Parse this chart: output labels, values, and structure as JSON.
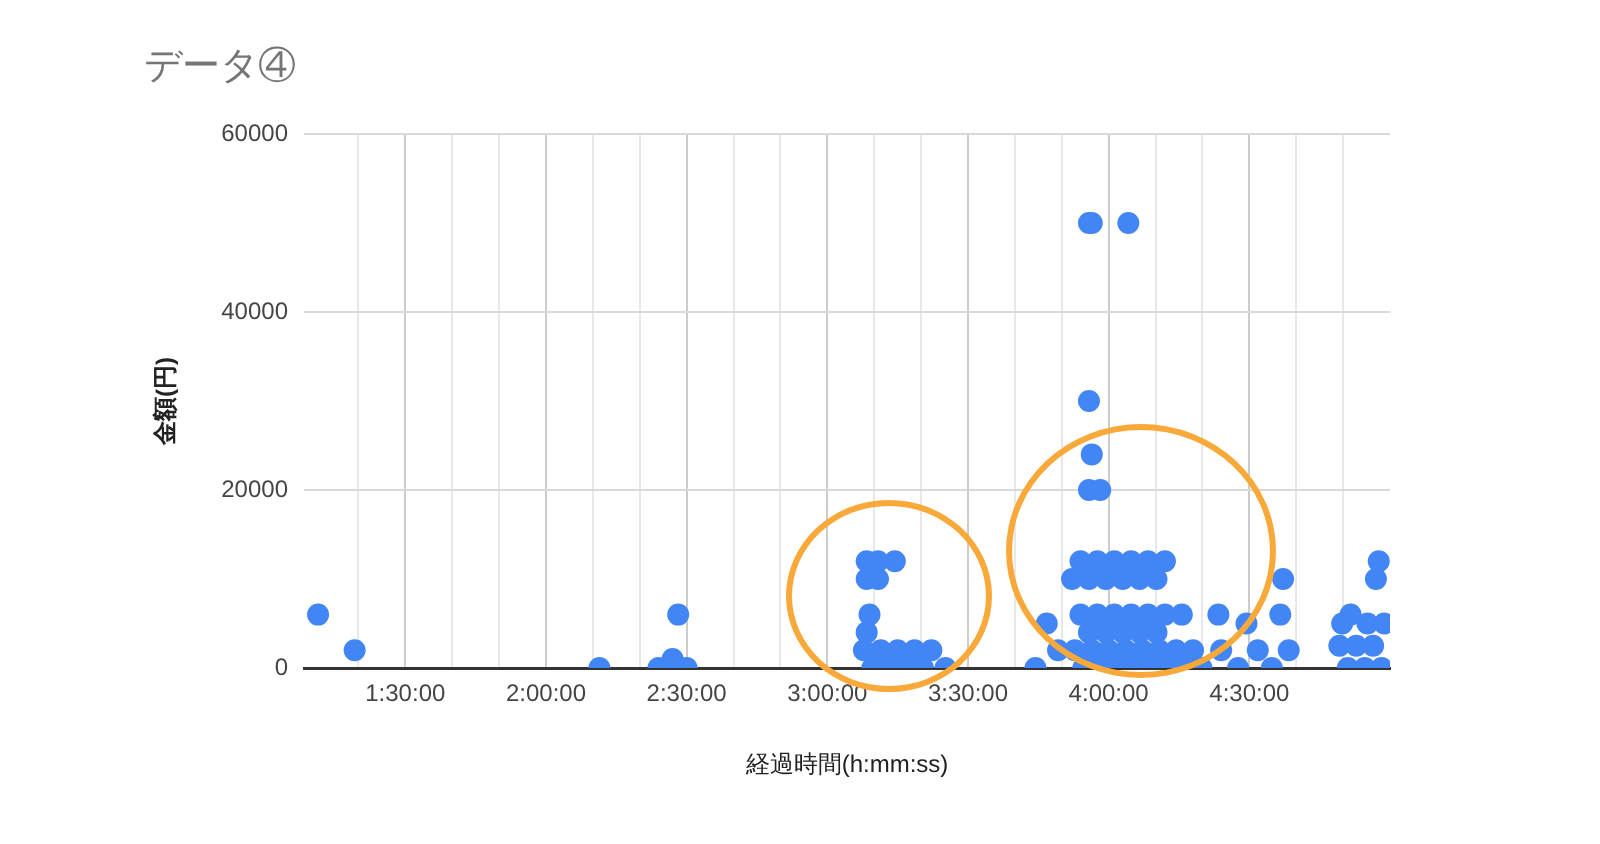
{
  "chart_data": {
    "type": "scatter",
    "title": "データ④",
    "xlabel": "経過時間(h:mm:ss)",
    "ylabel": "金額(円)",
    "xlim": [
      1.14,
      5.0
    ],
    "xticks": [
      {
        "value": 1.3333,
        "label": null
      },
      {
        "value": 1.5,
        "label": "1:30:00"
      },
      {
        "value": 1.6667,
        "label": null
      },
      {
        "value": 1.8333,
        "label": null
      },
      {
        "value": 2,
        "label": "2:00:00"
      },
      {
        "value": 2.1667,
        "label": null
      },
      {
        "value": 2.3333,
        "label": null
      },
      {
        "value": 2.5,
        "label": "2:30:00"
      },
      {
        "value": 2.6667,
        "label": null
      },
      {
        "value": 2.8333,
        "label": null
      },
      {
        "value": 3,
        "label": "3:00:00"
      },
      {
        "value": 3.1667,
        "label": null
      },
      {
        "value": 3.3333,
        "label": null
      },
      {
        "value": 3.5,
        "label": "3:30:00"
      },
      {
        "value": 3.6667,
        "label": null
      },
      {
        "value": 3.8333,
        "label": null
      },
      {
        "value": 4,
        "label": "4:00:00"
      },
      {
        "value": 4.1667,
        "label": null
      },
      {
        "value": 4.3333,
        "label": null
      },
      {
        "value": 4.5,
        "label": "4:30:00"
      },
      {
        "value": 4.6667,
        "label": null
      },
      {
        "value": 4.8333,
        "label": null
      }
    ],
    "ylim": [
      0,
      60000
    ],
    "yticks": [
      0,
      20000,
      40000,
      60000
    ],
    "grid": true,
    "legend": false,
    "marker": "circle",
    "series": [
      {
        "color": "#4285f4",
        "x": [
          1.19,
          1.32,
          2.19,
          2.4,
          2.45,
          2.5,
          2.47,
          3.14,
          3.18,
          3.24,
          3.14,
          3.18,
          3.15,
          3.14,
          3.13,
          3.19,
          3.25,
          3.31,
          3.37,
          3.16,
          3.22,
          3.28,
          3.34,
          3.42,
          3.74,
          3.78,
          3.82,
          3.93,
          3.94,
          4.07,
          3.93,
          3.94,
          3.93,
          3.97,
          3.9,
          3.96,
          4.02,
          4.08,
          4.14,
          4.2,
          3.87,
          3.93,
          3.99,
          4.05,
          4.11,
          4.17,
          3.9,
          3.96,
          4.02,
          4.08,
          4.14,
          4.2,
          4.26,
          4.39,
          3.93,
          3.99,
          4.05,
          4.11,
          4.17,
          3.88,
          3.94,
          4.0,
          4.06,
          4.12,
          4.18,
          4.24,
          4.3,
          3.91,
          3.97,
          4.03,
          4.09,
          4.15,
          4.21,
          4.27,
          4.33,
          4.4,
          4.46,
          4.49,
          4.53,
          4.58,
          4.62,
          4.61,
          4.64,
          4.96,
          4.95,
          4.86,
          4.83,
          4.92,
          4.98,
          4.82,
          4.88,
          4.94,
          4.85,
          4.91,
          4.97
        ],
        "values": [
          6000,
          2000,
          0,
          0,
          1000,
          0,
          6000,
          12000,
          12000,
          12000,
          10000,
          10000,
          6000,
          4000,
          2000,
          2000,
          2000,
          2000,
          2000,
          0,
          0,
          0,
          0,
          0,
          0,
          5000,
          2000,
          50000,
          50000,
          50000,
          30000,
          24000,
          20000,
          20000,
          12000,
          12000,
          12000,
          12000,
          12000,
          12000,
          10000,
          10000,
          10000,
          10000,
          10000,
          10000,
          6000,
          6000,
          6000,
          6000,
          6000,
          6000,
          6000,
          6000,
          4000,
          4000,
          4000,
          4000,
          4000,
          2000,
          2000,
          2000,
          2000,
          2000,
          2000,
          2000,
          2000,
          0,
          0,
          0,
          0,
          0,
          0,
          0,
          0,
          2000,
          0,
          5000,
          2000,
          0,
          10000,
          6000,
          2000,
          12000,
          10000,
          6000,
          5000,
          5000,
          5000,
          2500,
          2500,
          2500,
          0,
          0,
          0
        ]
      }
    ]
  }
}
